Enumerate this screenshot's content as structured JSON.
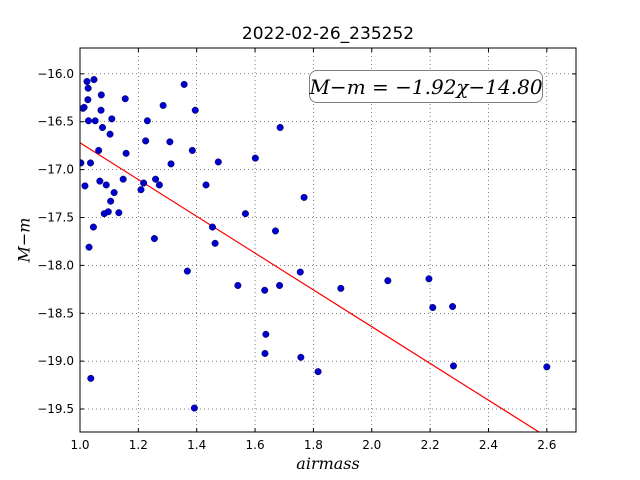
{
  "chart_data": {
    "type": "scatter",
    "title": "2022-02-26_235252",
    "xlabel": "airmass",
    "ylabel": "M−m",
    "annotation": "M−m = −1.92χ−14.80",
    "xlim": [
      1.0,
      2.7
    ],
    "ylim": [
      -15.73,
      -19.74
    ],
    "y_inverted": true,
    "grid": true,
    "x_ticks": [
      1.0,
      1.2,
      1.4,
      1.6,
      1.8,
      2.0,
      2.2,
      2.4,
      2.6
    ],
    "x_tick_labels": [
      "1.0",
      "1.2",
      "1.4",
      "1.6",
      "1.8",
      "2.0",
      "2.2",
      "2.4",
      "2.6"
    ],
    "y_ticks": [
      -16.0,
      -16.5,
      -17.0,
      -17.5,
      -18.0,
      -18.5,
      -19.0,
      -19.5
    ],
    "y_tick_labels": [
      "−16.0",
      "−16.5",
      "−17.0",
      "−17.5",
      "−18.0",
      "−18.5",
      "−19.0",
      "−19.5"
    ],
    "fit_line": {
      "slope": -1.92,
      "intercept": -14.8,
      "color": "#ff0000"
    },
    "point_color": "#0000cc",
    "points": [
      [
        1.003,
        -16.93
      ],
      [
        1.01,
        -16.36
      ],
      [
        1.014,
        -16.35
      ],
      [
        1.017,
        -17.17
      ],
      [
        1.024,
        -16.08
      ],
      [
        1.027,
        -16.27
      ],
      [
        1.028,
        -16.15
      ],
      [
        1.029,
        -16.49
      ],
      [
        1.031,
        -17.81
      ],
      [
        1.036,
        -16.93
      ],
      [
        1.037,
        -19.18
      ],
      [
        1.046,
        -17.6
      ],
      [
        1.048,
        -16.06
      ],
      [
        1.052,
        -16.49
      ],
      [
        1.064,
        -16.8
      ],
      [
        1.068,
        -17.12
      ],
      [
        1.072,
        -16.38
      ],
      [
        1.073,
        -16.22
      ],
      [
        1.077,
        -16.56
      ],
      [
        1.083,
        -17.46
      ],
      [
        1.09,
        -17.16
      ],
      [
        1.097,
        -17.44
      ],
      [
        1.103,
        -16.63
      ],
      [
        1.105,
        -17.33
      ],
      [
        1.109,
        -16.47
      ],
      [
        1.117,
        -17.24
      ],
      [
        1.133,
        -17.45
      ],
      [
        1.148,
        -17.1
      ],
      [
        1.155,
        -16.26
      ],
      [
        1.158,
        -16.83
      ],
      [
        1.209,
        -17.21
      ],
      [
        1.218,
        -17.14
      ],
      [
        1.225,
        -16.7
      ],
      [
        1.231,
        -16.49
      ],
      [
        1.255,
        -17.72
      ],
      [
        1.259,
        -17.1
      ],
      [
        1.272,
        -17.16
      ],
      [
        1.285,
        -16.33
      ],
      [
        1.308,
        -16.71
      ],
      [
        1.312,
        -16.94
      ],
      [
        1.357,
        -16.11
      ],
      [
        1.368,
        -18.06
      ],
      [
        1.385,
        -16.8
      ],
      [
        1.392,
        -19.49
      ],
      [
        1.395,
        -16.38
      ],
      [
        1.432,
        -17.16
      ],
      [
        1.454,
        -17.6
      ],
      [
        1.463,
        -17.77
      ],
      [
        1.474,
        -16.92
      ],
      [
        1.541,
        -18.21
      ],
      [
        1.567,
        -17.46
      ],
      [
        1.601,
        -16.88
      ],
      [
        1.633,
        -18.26
      ],
      [
        1.634,
        -18.92
      ],
      [
        1.637,
        -18.72
      ],
      [
        1.67,
        -17.64
      ],
      [
        1.684,
        -18.21
      ],
      [
        1.686,
        -16.56
      ],
      [
        1.755,
        -18.07
      ],
      [
        1.757,
        -18.96
      ],
      [
        1.768,
        -17.29
      ],
      [
        1.816,
        -19.11
      ],
      [
        1.894,
        -18.24
      ],
      [
        2.055,
        -18.16
      ],
      [
        2.196,
        -18.14
      ],
      [
        2.209,
        -18.44
      ],
      [
        2.277,
        -18.43
      ],
      [
        2.28,
        -19.05
      ],
      [
        2.6,
        -19.06
      ]
    ]
  }
}
